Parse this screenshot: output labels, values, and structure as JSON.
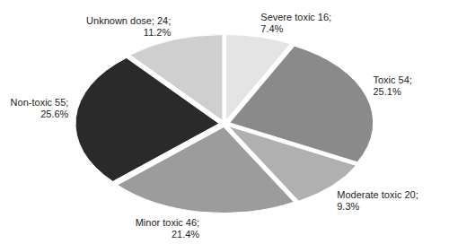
{
  "chart_data": {
    "type": "pie",
    "categories": [
      "Severe toxic",
      "Toxic",
      "Moderate toxic",
      "Minor toxic",
      "Non-toxic",
      "Unknown dose;"
    ],
    "values": [
      16,
      54,
      20,
      46,
      55,
      24
    ],
    "value_labels": [
      "16;",
      "54;",
      "20;",
      "46;",
      "55;",
      "24;"
    ],
    "percentages": [
      7.4,
      25.1,
      9.3,
      21.4,
      25.6,
      11.2
    ],
    "percentage_labels": [
      "7.4%",
      "25.1%",
      "9.3%",
      "21.4%",
      "25.6%",
      "11.2%"
    ],
    "colors": [
      "#e4e4e4",
      "#8a8a8a",
      "#b0b0b0",
      "#9c9c9c",
      "#2a2a2a",
      "#cfcfcf"
    ],
    "data_labels": true
  }
}
